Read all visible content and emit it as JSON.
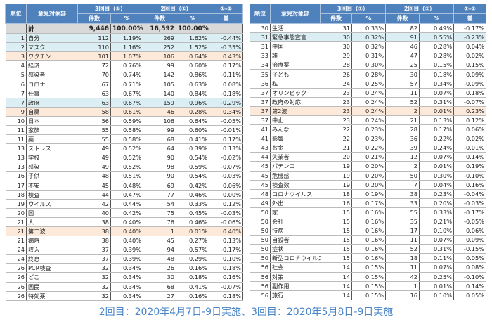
{
  "headers": {
    "rank": "順位",
    "word": "意見対象部",
    "round3": "3回目（①）",
    "round2": "2回目（②）",
    "diff_group": "①-②",
    "count": "件数",
    "pct": "%",
    "diff": "差"
  },
  "total": {
    "label": "計",
    "c3": "9,446",
    "p3": "100.00%",
    "c2": "16,592",
    "p2": "100.00%",
    "d": ""
  },
  "highlight_colors": {
    "blue": "#daeef3",
    "orange": "#fde9d9",
    "header": "#4f81bd",
    "total": "#d9d9d9"
  },
  "left_rows": [
    [
      "1",
      "自分",
      "112",
      "1.19%",
      "269",
      "1.62%",
      "-0.44%",
      "blue"
    ],
    [
      "2",
      "マスク",
      "110",
      "1.16%",
      "252",
      "1.52%",
      "-0.35%",
      "blue"
    ],
    [
      "3",
      "ワクチン",
      "101",
      "1.07%",
      "106",
      "0.64%",
      "0.43%",
      "orange"
    ],
    [
      "4",
      "経済",
      "72",
      "0.76%",
      "99",
      "0.60%",
      "0.17%",
      ""
    ],
    [
      "5",
      "感染者",
      "70",
      "0.74%",
      "142",
      "0.86%",
      "-0.11%",
      ""
    ],
    [
      "6",
      "コロナ",
      "67",
      "0.71%",
      "105",
      "0.63%",
      "0.08%",
      ""
    ],
    [
      "7",
      "仕事",
      "63",
      "0.67%",
      "140",
      "0.84%",
      "-0.18%",
      ""
    ],
    [
      "7",
      "政府",
      "63",
      "0.67%",
      "159",
      "0.96%",
      "-0.29%",
      "blue"
    ],
    [
      "9",
      "自粛",
      "58",
      "0.61%",
      "46",
      "0.28%",
      "0.34%",
      "orange"
    ],
    [
      "10",
      "日本",
      "56",
      "0.59%",
      "106",
      "0.64%",
      "-0.05%",
      ""
    ],
    [
      "11",
      "家族",
      "55",
      "0.58%",
      "99",
      "0.60%",
      "-0.01%",
      ""
    ],
    [
      "11",
      "薬",
      "55",
      "0.58%",
      "68",
      "0.41%",
      "0.17%",
      ""
    ],
    [
      "13",
      "ストレス",
      "49",
      "0.52%",
      "64",
      "0.39%",
      "0.13%",
      ""
    ],
    [
      "13",
      "学校",
      "49",
      "0.52%",
      "90",
      "0.54%",
      "-0.02%",
      ""
    ],
    [
      "13",
      "感染",
      "49",
      "0.52%",
      "98",
      "0.59%",
      "-0.07%",
      ""
    ],
    [
      "16",
      "子供",
      "48",
      "0.51%",
      "90",
      "0.54%",
      "-0.03%",
      ""
    ],
    [
      "17",
      "不安",
      "45",
      "0.48%",
      "69",
      "0.42%",
      "0.06%",
      ""
    ],
    [
      "18",
      "検査",
      "44",
      "0.47%",
      "77",
      "0.46%",
      "0.00%",
      ""
    ],
    [
      "19",
      "ウイルス",
      "42",
      "0.44%",
      "54",
      "0.33%",
      "0.12%",
      ""
    ],
    [
      "20",
      "国",
      "40",
      "0.42%",
      "75",
      "0.45%",
      "-0.03%",
      ""
    ],
    [
      "21",
      "人",
      "38",
      "0.40%",
      "76",
      "0.46%",
      "-0.06%",
      ""
    ],
    [
      "21",
      "第二波",
      "38",
      "0.40%",
      "1",
      "0.01%",
      "0.40%",
      "orange"
    ],
    [
      "21",
      "病院",
      "38",
      "0.40%",
      "45",
      "0.27%",
      "0.13%",
      ""
    ],
    [
      "24",
      "収入",
      "37",
      "0.39%",
      "94",
      "0.57%",
      "-0.17%",
      ""
    ],
    [
      "24",
      "終息",
      "37",
      "0.39%",
      "48",
      "0.29%",
      "0.10%",
      ""
    ],
    [
      "26",
      "PCR検査",
      "32",
      "0.34%",
      "26",
      "0.16%",
      "0.18%",
      ""
    ],
    [
      "26",
      "どこ",
      "32",
      "0.34%",
      "30",
      "0.18%",
      "0.16%",
      ""
    ],
    [
      "26",
      "国民",
      "32",
      "0.34%",
      "68",
      "0.41%",
      "-0.07%",
      ""
    ],
    [
      "26",
      "特効薬",
      "32",
      "0.34%",
      "27",
      "0.16%",
      "0.18%",
      ""
    ]
  ],
  "right_rows": [
    [
      "30",
      "生活",
      "31",
      "0.33%",
      "82",
      "0.49%",
      "-0.17%",
      ""
    ],
    [
      "31",
      "緊急事態宣言",
      "30",
      "0.32%",
      "91",
      "0.55%",
      "-0.23%",
      "blue"
    ],
    [
      "31",
      "中国",
      "30",
      "0.32%",
      "46",
      "0.28%",
      "0.04%",
      ""
    ],
    [
      "33",
      "誰",
      "29",
      "0.31%",
      "47",
      "0.28%",
      "0.02%",
      ""
    ],
    [
      "34",
      "治療薬",
      "28",
      "0.30%",
      "25",
      "0.15%",
      "0.15%",
      ""
    ],
    [
      "35",
      "子ども",
      "26",
      "0.28%",
      "30",
      "0.18%",
      "0.09%",
      ""
    ],
    [
      "36",
      "私",
      "24",
      "0.25%",
      "57",
      "0.34%",
      "-0.09%",
      ""
    ],
    [
      "37",
      "オリンピック",
      "23",
      "0.24%",
      "11",
      "0.07%",
      "0.18%",
      ""
    ],
    [
      "37",
      "政府の対応",
      "23",
      "0.24%",
      "52",
      "0.31%",
      "-0.07%",
      ""
    ],
    [
      "37",
      "第2波",
      "23",
      "0.24%",
      "2",
      "0.01%",
      "0.23%",
      "orange"
    ],
    [
      "37",
      "中止",
      "23",
      "0.24%",
      "21",
      "0.13%",
      "0.12%",
      ""
    ],
    [
      "41",
      "みんな",
      "22",
      "0.23%",
      "28",
      "0.17%",
      "0.06%",
      ""
    ],
    [
      "41",
      "影響",
      "22",
      "0.23%",
      "36",
      "0.22%",
      "0.02%",
      ""
    ],
    [
      "43",
      "お金",
      "21",
      "0.22%",
      "39",
      "0.24%",
      "-0.01%",
      ""
    ],
    [
      "44",
      "失業者",
      "20",
      "0.21%",
      "12",
      "0.07%",
      "0.14%",
      ""
    ],
    [
      "45",
      "パチンコ",
      "19",
      "0.20%",
      "2",
      "0.01%",
      "0.19%",
      ""
    ],
    [
      "45",
      "危機感",
      "19",
      "0.20%",
      "50",
      "0.30%",
      "-0.10%",
      ""
    ],
    [
      "45",
      "検査数",
      "19",
      "0.20%",
      "7",
      "0.04%",
      "0.16%",
      ""
    ],
    [
      "48",
      "コロナウイルス",
      "18",
      "0.19%",
      "38",
      "0.23%",
      "-0.04%",
      ""
    ],
    [
      "49",
      "外出",
      "16",
      "0.17%",
      "33",
      "0.20%",
      "-0.03%",
      ""
    ],
    [
      "50",
      "家",
      "15",
      "0.16%",
      "55",
      "0.33%",
      "-0.17%",
      ""
    ],
    [
      "50",
      "会社",
      "15",
      "0.16%",
      "35",
      "0.21%",
      "-0.05%",
      ""
    ],
    [
      "50",
      "持病",
      "15",
      "0.16%",
      "17",
      "0.10%",
      "0.06%",
      ""
    ],
    [
      "50",
      "自殺者",
      "15",
      "0.16%",
      "11",
      "0.07%",
      "0.09%",
      ""
    ],
    [
      "50",
      "症状",
      "15",
      "0.16%",
      "52",
      "0.31%",
      "-0.15%",
      ""
    ],
    [
      "50",
      "新型コロナウイルス",
      "15",
      "0.16%",
      "18",
      "0.11%",
      "0.05%",
      ""
    ],
    [
      "56",
      "社会",
      "14",
      "0.15%",
      "11",
      "0.07%",
      "0.08%",
      ""
    ],
    [
      "56",
      "対策",
      "14",
      "0.15%",
      "42",
      "0.25%",
      "-0.10%",
      ""
    ],
    [
      "56",
      "副作用",
      "14",
      "0.15%",
      "1",
      "0.01%",
      "0.14%",
      ""
    ],
    [
      "56",
      "旅行",
      "14",
      "0.15%",
      "16",
      "0.10%",
      "0.05%",
      ""
    ]
  ],
  "caption": "2回目：2020年4月7日-9日実施、3回目：2020年5月8日-9日実施"
}
